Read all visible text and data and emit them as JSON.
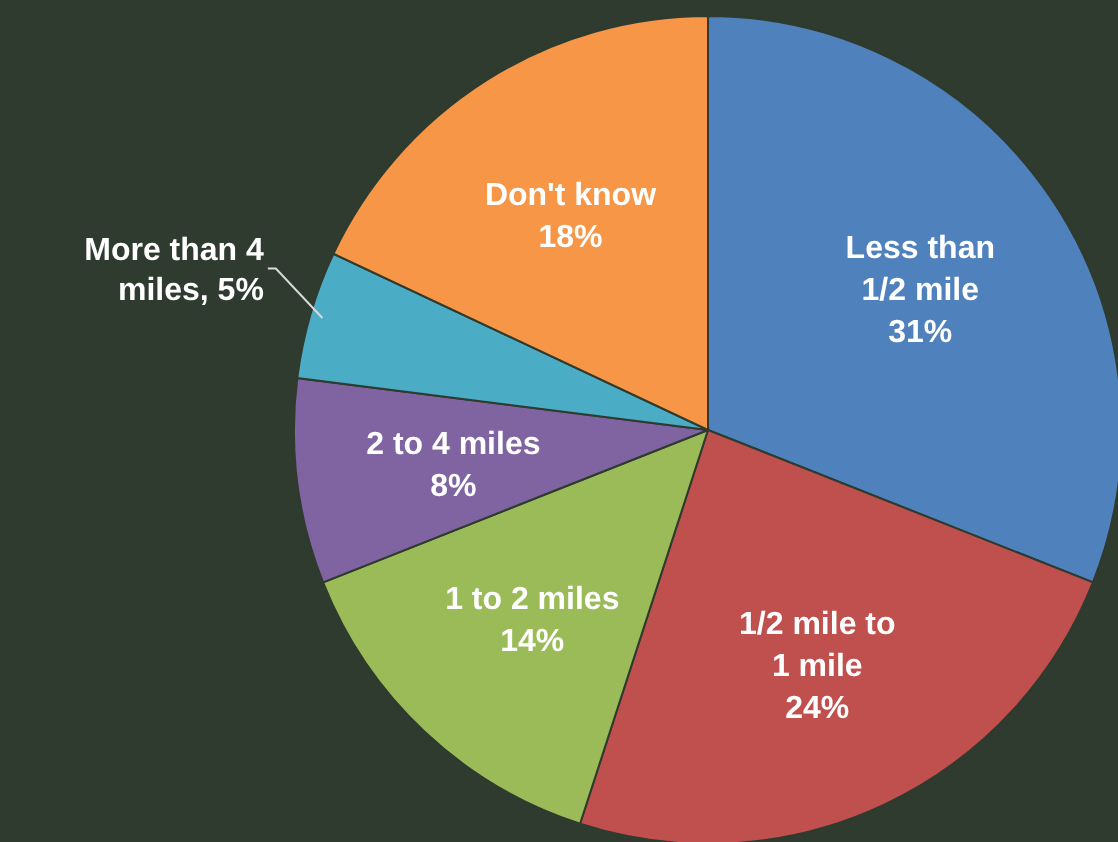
{
  "chart_data": {
    "type": "pie",
    "categories": [
      "Less than 1/2 mile",
      "1/2 mile to 1 mile",
      "1 to 2 miles",
      "2 to 4 miles",
      "More than 4 miles",
      "Don't know"
    ],
    "values": [
      31,
      24,
      14,
      8,
      5,
      18
    ],
    "value_labels": [
      "31%",
      "24%",
      "14%",
      "8%",
      "5%",
      "18%"
    ],
    "colors": [
      "#4f81bd",
      "#c0504d",
      "#9bbb59",
      "#8064a2",
      "#4bacc6",
      "#f79646"
    ],
    "legend": false
  }
}
